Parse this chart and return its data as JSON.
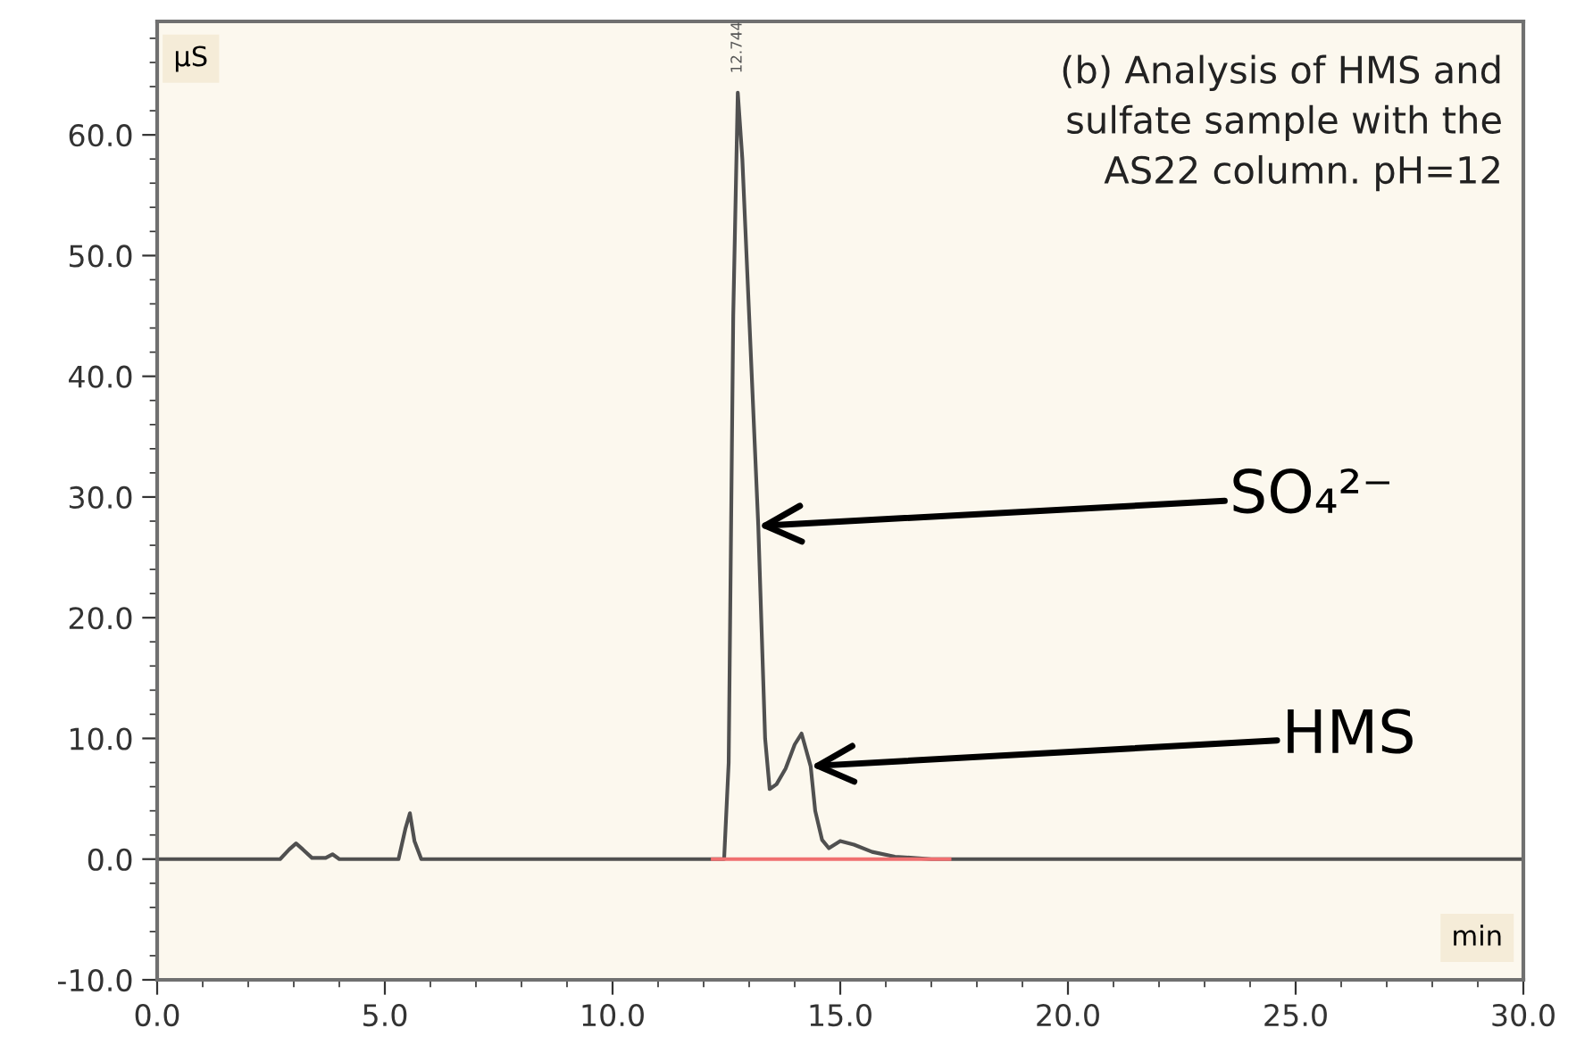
{
  "chart_data": {
    "type": "line",
    "title": "(b) Analysis of HMS and\nsulfate sample with the\nAS22 column. pH=12",
    "xlabel": "min",
    "ylabel": "µS",
    "series": [
      {
        "color": "#505050",
        "x": [
          0,
          2.7,
          2.9,
          3.05,
          3.2,
          3.4,
          3.7,
          3.85,
          4.0,
          5.3,
          5.45,
          5.55,
          5.65,
          5.8,
          12.45,
          12.55,
          12.65,
          12.75,
          12.85,
          13.0,
          13.2,
          13.35,
          13.45,
          13.6,
          13.8,
          14.0,
          14.15,
          14.35,
          14.45,
          14.6,
          14.75,
          15.0,
          15.3,
          15.7,
          16.2,
          17.0,
          30
        ],
        "values": [
          0,
          0,
          0.8,
          1.3,
          0.8,
          0.1,
          0.1,
          0.4,
          0,
          0,
          2.5,
          3.8,
          1.5,
          0,
          0,
          8,
          45,
          63.5,
          58,
          45,
          27.6,
          10,
          5.8,
          6.2,
          7.5,
          9.5,
          10.4,
          7.7,
          4,
          1.6,
          0.9,
          1.5,
          1.2,
          0.6,
          0.2,
          0,
          0
        ]
      },
      {
        "color": "#f07070",
        "x": [
          12.2,
          17.4
        ],
        "values": [
          0,
          0
        ]
      }
    ],
    "annotations": [
      {
        "text": "12.744",
        "x": 12.744,
        "y": 63.5
      },
      {
        "text": "SO₄²⁻",
        "x": 13.2,
        "y": 27.6
      },
      {
        "text": "HMS",
        "x": 14.35,
        "y": 7.7
      }
    ],
    "xlim": [
      0,
      30
    ],
    "ylim": [
      -10,
      69.4
    ],
    "xticks": [
      {
        "value": 0,
        "label": "0.0"
      },
      {
        "value": 5,
        "label": "5.0"
      },
      {
        "value": 10,
        "label": "10.0"
      },
      {
        "value": 15,
        "label": "15.0"
      },
      {
        "value": 20,
        "label": "20.0"
      },
      {
        "value": 25,
        "label": "25.0"
      },
      {
        "value": 30,
        "label": "30.0"
      }
    ],
    "yticks": [
      {
        "value": -10,
        "label": "-10.0"
      },
      {
        "value": 0,
        "label": "0.0"
      },
      {
        "value": 10,
        "label": "10.0"
      },
      {
        "value": 20,
        "label": "20.0"
      },
      {
        "value": 30,
        "label": "30.0"
      },
      {
        "value": 40,
        "label": "40.0"
      },
      {
        "value": 50,
        "label": "50.0"
      },
      {
        "value": 60,
        "label": "60.0"
      }
    ],
    "grid": false,
    "legend": false,
    "marker": "none",
    "line_style": "solid"
  }
}
